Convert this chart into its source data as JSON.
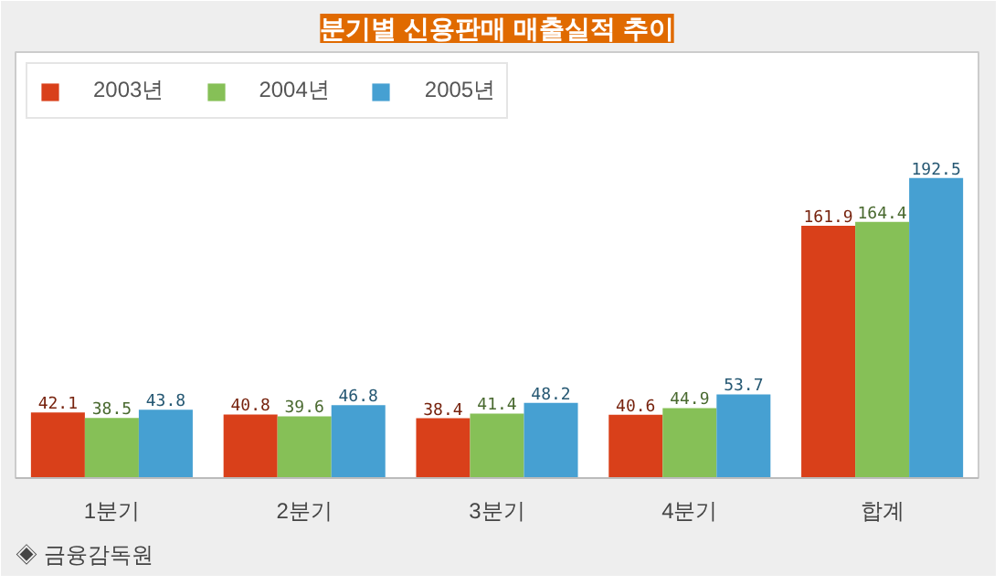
{
  "chart_data": {
    "type": "bar",
    "title": "분기별 신용판매 매출실적 추이",
    "categories": [
      "1분기",
      "2분기",
      "3분기",
      "4분기",
      "합계"
    ],
    "series": [
      {
        "name": "2003년",
        "color": "#d9401a",
        "values": [
          42.1,
          40.8,
          38.4,
          40.6,
          161.9
        ]
      },
      {
        "name": "2004년",
        "color": "#86c057",
        "values": [
          38.5,
          39.6,
          41.4,
          44.9,
          164.4
        ]
      },
      {
        "name": "2005년",
        "color": "#46a0d2",
        "values": [
          43.8,
          46.8,
          48.2,
          53.7,
          192.5
        ]
      }
    ],
    "data_labels": true,
    "legend": "top left",
    "grid": false,
    "annotations": [
      "◈ 금융감독원"
    ]
  }
}
